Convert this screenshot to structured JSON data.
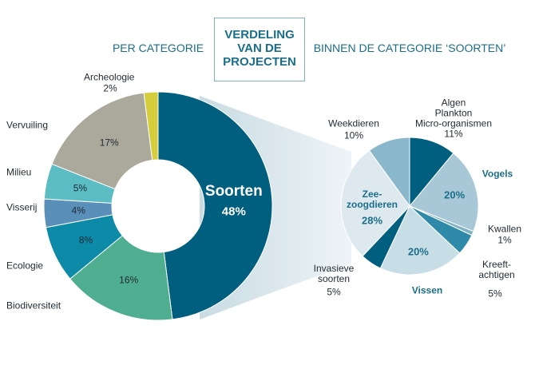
{
  "title": "VERDELING\nVAN DE\nPROJECTEN",
  "chart_data": [
    {
      "type": "donut",
      "subtitle": "PER CATEGORIE",
      "categories": [
        "Soorten",
        "Biodiversiteit",
        "Ecologie",
        "Visserij",
        "Milieu",
        "Vervuiling",
        "Archeologie"
      ],
      "values": [
        48,
        16,
        8,
        4,
        5,
        17,
        2
      ],
      "value_labels": [
        "48%",
        "16%",
        "8%",
        "4%",
        "5%",
        "17%",
        "2%"
      ],
      "colors": [
        "#005f7f",
        "#4fae8f",
        "#0c8aa8",
        "#5a8fba",
        "#5bbcc4",
        "#aaa99b",
        "#d6cd3d"
      ]
    },
    {
      "type": "pie",
      "subtitle": "BINNEN DE CATEGORIE ‘SOORTEN’",
      "categories": [
        "Algen\nPlankton\nMicro-organismen",
        "Vogels",
        "Kwallen",
        "Kreeft-\nachtigen",
        "Vissen",
        "Invasieve\nsoorten",
        "Zee-\nzoogdieren",
        "Weekdieren"
      ],
      "values": [
        11,
        20,
        1,
        5,
        20,
        5,
        28,
        10
      ],
      "value_labels": [
        "11%",
        "20%",
        "1%",
        "5%",
        "20%",
        "5%",
        "28%",
        "10%"
      ],
      "colors": [
        "#005f7f",
        "#a9c8d7",
        "#7fb2c5",
        "#2e8aa8",
        "#c8dee7",
        "#005f7f",
        "#dde9ef",
        "#8ab8ca"
      ]
    }
  ]
}
